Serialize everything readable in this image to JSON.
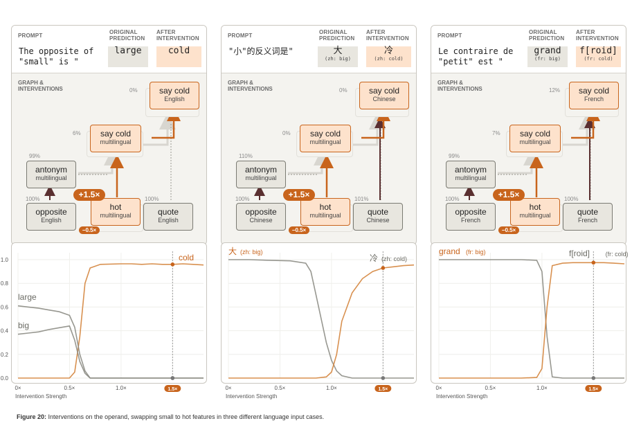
{
  "headers": {
    "prompt": "PROMPT",
    "original": "ORIGINAL PREDICTION",
    "after": "AFTER INTERVENTION",
    "graph": "GRAPH & INTERVENTIONS"
  },
  "panels": [
    {
      "prompt": "The opposite of \"small\" is \"",
      "original": {
        "main": "large",
        "sub": ""
      },
      "after": {
        "main": "cold",
        "sub": ""
      },
      "nodes": {
        "saycold_top": {
          "t": "say cold",
          "s": "English",
          "pct": "0%"
        },
        "saycold_mid": {
          "t": "say cold",
          "s": "multilingual",
          "pct": "6%"
        },
        "antonym": {
          "t": "antonym",
          "s": "multilingual",
          "pct": "99%"
        },
        "opposite": {
          "t": "opposite",
          "s": "English",
          "pct": "100%"
        },
        "hot": {
          "t": "hot",
          "s": "multilingual"
        },
        "quote": {
          "t": "quote",
          "s": "English",
          "pct": "100%"
        }
      },
      "badge_big": "+1.5×",
      "badge_small": "−0.5×"
    },
    {
      "prompt": "\"小\"的反义词是\"",
      "original": {
        "main": "大",
        "sub": "(zh: big)"
      },
      "after": {
        "main": "冷",
        "sub": "(zh: cold)"
      },
      "nodes": {
        "saycold_top": {
          "t": "say cold",
          "s": "Chinese",
          "pct": "0%"
        },
        "saycold_mid": {
          "t": "say cold",
          "s": "multilingual",
          "pct": "0%"
        },
        "antonym": {
          "t": "antonym",
          "s": "multilingual",
          "pct": "110%"
        },
        "opposite": {
          "t": "opposite",
          "s": "Chinese",
          "pct": "100%"
        },
        "hot": {
          "t": "hot",
          "s": "multilingual"
        },
        "quote": {
          "t": "quote",
          "s": "Chinese",
          "pct": "101%"
        }
      },
      "badge_big": "+1.5×",
      "badge_small": "−0.5×"
    },
    {
      "prompt": "Le contraire de \"petit\" est \"",
      "original": {
        "main": "grand",
        "sub": "(fr: big)"
      },
      "after": {
        "main": "f[roid]",
        "sub": "(fr: cold)"
      },
      "nodes": {
        "saycold_top": {
          "t": "say cold",
          "s": "French",
          "pct": "12%"
        },
        "saycold_mid": {
          "t": "say cold",
          "s": "multilingual",
          "pct": "7%"
        },
        "antonym": {
          "t": "antonym",
          "s": "multilingual",
          "pct": "99%"
        },
        "opposite": {
          "t": "opposite",
          "s": "French",
          "pct": "100%"
        },
        "hot": {
          "t": "hot",
          "s": "multilingual"
        },
        "quote": {
          "t": "quote",
          "s": "French",
          "pct": "100%"
        }
      },
      "badge_big": "+1.5×",
      "badge_small": "−0.5×"
    }
  ],
  "chart_data": [
    {
      "type": "line",
      "xlabel": "Intervention Strength",
      "xlim": [
        0,
        1.8
      ],
      "ylim": [
        0,
        1.0
      ],
      "xticks": [
        "0×",
        "0.5×",
        "1.0×"
      ],
      "yticks": [
        "0.0",
        "0.2",
        "0.4",
        "0.6",
        "0.8",
        "1.0"
      ],
      "marker_label": "1.5×",
      "marker_x": 1.5,
      "series": [
        {
          "name": "cold",
          "color": "#d4843c",
          "x": [
            0,
            0.1,
            0.2,
            0.3,
            0.4,
            0.5,
            0.55,
            0.6,
            0.65,
            0.7,
            0.8,
            1.0,
            1.1,
            1.2,
            1.3,
            1.4,
            1.5,
            1.6,
            1.7,
            1.8
          ],
          "y": [
            0,
            0,
            0,
            0,
            0,
            0,
            0.05,
            0.35,
            0.8,
            0.93,
            0.96,
            0.965,
            0.965,
            0.96,
            0.965,
            0.96,
            0.96,
            0.965,
            0.96,
            0.955
          ]
        },
        {
          "name": "large",
          "color": "#8c8c84",
          "x": [
            0,
            0.1,
            0.2,
            0.3,
            0.4,
            0.5,
            0.55,
            0.6,
            0.65,
            0.7,
            0.8,
            1.0,
            1.5,
            1.8
          ],
          "y": [
            0.61,
            0.6,
            0.59,
            0.575,
            0.56,
            0.53,
            0.43,
            0.2,
            0.06,
            0,
            0,
            0,
            0,
            0
          ]
        },
        {
          "name": "big",
          "color": "#8c8c84",
          "x": [
            0,
            0.1,
            0.2,
            0.3,
            0.4,
            0.5,
            0.55,
            0.6,
            0.65,
            0.7,
            0.8,
            1.0,
            1.5,
            1.8
          ],
          "y": [
            0.37,
            0.38,
            0.39,
            0.41,
            0.425,
            0.44,
            0.32,
            0.14,
            0.04,
            0,
            0,
            0,
            0,
            0
          ]
        }
      ]
    },
    {
      "type": "line",
      "xlabel": "Intervention Strength",
      "xlim": [
        0,
        1.8
      ],
      "ylim": [
        0,
        1.0
      ],
      "xticks": [
        "0×",
        "0.5×",
        "1.0×"
      ],
      "yticks": [],
      "marker_label": "1.5×",
      "marker_x": 1.5,
      "series": [
        {
          "name": "大",
          "color": "#8c8c84",
          "x": [
            0,
            0.2,
            0.4,
            0.6,
            0.75,
            0.8,
            0.85,
            0.9,
            0.95,
            1.0,
            1.05,
            1.1,
            1.2,
            1.5,
            1.8
          ],
          "y": [
            1.0,
            1.0,
            0.995,
            0.99,
            0.97,
            0.9,
            0.7,
            0.5,
            0.3,
            0.15,
            0.06,
            0.02,
            0,
            0,
            0
          ]
        },
        {
          "name": "冷",
          "color": "#d4843c",
          "x": [
            0,
            0.2,
            0.4,
            0.6,
            0.85,
            0.95,
            1.0,
            1.05,
            1.1,
            1.2,
            1.3,
            1.4,
            1.5,
            1.6,
            1.7,
            1.8
          ],
          "y": [
            0,
            0,
            0,
            0,
            0,
            0.01,
            0.05,
            0.2,
            0.48,
            0.72,
            0.84,
            0.9,
            0.93,
            0.94,
            0.95,
            0.955
          ]
        }
      ]
    },
    {
      "type": "line",
      "xlabel": "Intervention Strength",
      "xlim": [
        0,
        1.8
      ],
      "ylim": [
        0,
        1.0
      ],
      "xticks": [
        "0×",
        "0.5×",
        "1.0×"
      ],
      "yticks": [],
      "marker_label": "1.5×",
      "marker_x": 1.5,
      "series": [
        {
          "name": "grand",
          "color": "#8c8c84",
          "x": [
            0,
            0.2,
            0.4,
            0.6,
            0.8,
            0.95,
            1.0,
            1.05,
            1.1,
            1.2,
            1.5,
            1.8
          ],
          "y": [
            1.0,
            1.0,
            1.0,
            1.0,
            1.0,
            0.995,
            0.9,
            0.35,
            0.01,
            0,
            0,
            0
          ]
        },
        {
          "name": "f[roid]",
          "color": "#d4843c",
          "x": [
            0,
            0.2,
            0.4,
            0.6,
            0.8,
            0.95,
            1.0,
            1.05,
            1.1,
            1.2,
            1.3,
            1.5,
            1.6,
            1.7,
            1.8
          ],
          "y": [
            0,
            0,
            0,
            0,
            0,
            0.005,
            0.08,
            0.6,
            0.95,
            0.97,
            0.975,
            0.975,
            0.975,
            0.97,
            0.965
          ]
        }
      ]
    }
  ],
  "series_labels": [
    [
      {
        "text": "cold",
        "sub": ""
      },
      {
        "text": "large",
        "sub": ""
      },
      {
        "text": "big",
        "sub": ""
      }
    ],
    [
      {
        "text": "冷",
        "sub": "(zh: cold)"
      },
      {
        "text": "大",
        "sub": "(zh: big)"
      }
    ],
    [
      {
        "text": "f[roid]",
        "sub": "(fr: cold)"
      },
      {
        "text": "grand",
        "sub": "(fr: big)"
      }
    ]
  ],
  "caption": {
    "label": "Figure 20:",
    "text": " Interventions on the operand, swapping small to hot features in three different language input cases."
  }
}
